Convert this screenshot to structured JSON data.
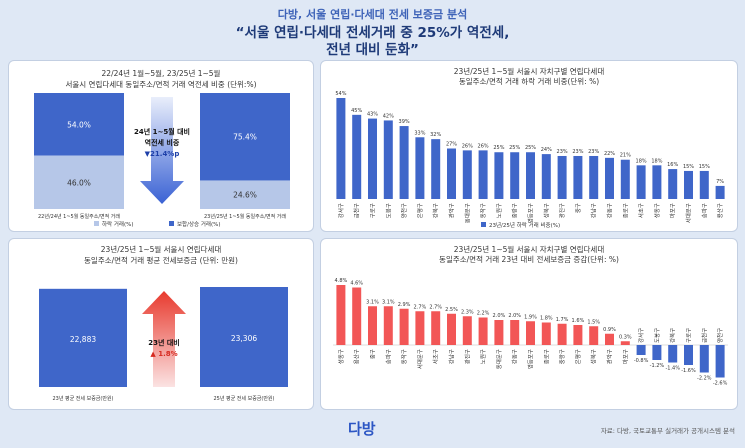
{
  "header": {
    "subtitle": "다방, 서울 연립·다세대 전세 보증금 분석",
    "title_line1": "“서울 연립·다세대 전세거래 중 25%가 역전세,",
    "title_line2": "전년 대비 둔화”"
  },
  "footer": {
    "source": "자료: 다방, 국토교통부 실거래가 공개시스템 분석",
    "logo": "다방"
  },
  "colors": {
    "blue": "#3f66c9",
    "light_blue": "#b6c7e8",
    "red": "#f25656",
    "arrow_blue": "#3a62d4",
    "arrow_red": "#e83a2e"
  },
  "chart_data": [
    {
      "type": "bar",
      "stacked": true,
      "title_line1": "22/24년 1월~5월, 23/25년 1~5월",
      "title_line2": "서울시 연립다세대 동일주소/면적 거래 역전세 비중 (단위:%)",
      "categories": [
        "22년/24년 1~5월 동일주소/면적 거래",
        "23년/25년 1~5월 동일주소/면적 거래"
      ],
      "series": [
        {
          "name": "하락 거래(%)",
          "values": [
            46.0,
            24.6
          ],
          "labels": [
            "46.0%",
            "24.6%"
          ]
        },
        {
          "name": "보합/상승 거래(%)",
          "values": [
            54.0,
            75.4
          ],
          "labels": [
            "54.0%",
            "75.4%"
          ]
        }
      ],
      "annotation": {
        "line1": "24년 1~5월 대비",
        "line2": "역전세 비중",
        "line3": "▼21.4%p"
      }
    },
    {
      "type": "bar",
      "title_line1": "23년/25년 1~5월 서울시 자치구별 연립다세대",
      "title_line2": "동일주소/면적 거래 하락 거래 비중(단위: %)",
      "legend": "23년/25년 하락 거래 비중(%)",
      "categories": [
        "강서구",
        "금천구",
        "구로구",
        "도봉구",
        "양천구",
        "은평구",
        "강북구",
        "관악구",
        "동대문구",
        "동작구",
        "노원구",
        "중랑구",
        "영등포구",
        "성북구",
        "광진구",
        "중구",
        "강남구",
        "강동구",
        "종로구",
        "서초구",
        "성동구",
        "마포구",
        "서대문구",
        "송파구",
        "용산구"
      ],
      "values": [
        54,
        45,
        43,
        42,
        39,
        33,
        32,
        27,
        26,
        26,
        25,
        25,
        25,
        24,
        23,
        23,
        23,
        22,
        21,
        18,
        18,
        16,
        15,
        15,
        7
      ],
      "labels": [
        "54%",
        "45%",
        "43%",
        "42%",
        "39%",
        "33%",
        "32%",
        "27%",
        "26%",
        "26%",
        "25%",
        "25%",
        "25%",
        "24%",
        "23%",
        "23%",
        "23%",
        "22%",
        "21%",
        "18%",
        "18%",
        "16%",
        "15%",
        "15%",
        "7%"
      ]
    },
    {
      "type": "bar",
      "title_line1": "23년/25년 1~5월 서울시 연립다세대",
      "title_line2": "동일주소/면적 거래 평균 전세보증금 (단위: 만원)",
      "categories": [
        "23년 평균 전세 보증금(만원)",
        "25년 평균 전세 보증금(만원)"
      ],
      "values": [
        22883,
        23306
      ],
      "labels": [
        "22,883",
        "23,306"
      ],
      "annotation": {
        "line1": "23년 대비",
        "line2": "▲ 1.8%"
      }
    },
    {
      "type": "bar",
      "title_line1": "23년/25년 1~5월 서울시 자치구별 연립다세대",
      "title_line2": "동일주소/면적 거래 23년 대비 전세보증금 증감(단위: %)",
      "categories": [
        "성동구",
        "용산구",
        "중구",
        "송파구",
        "동작구",
        "서대문구",
        "서초구",
        "강남구",
        "광진구",
        "노원구",
        "동대문구",
        "강동구",
        "영등포구",
        "종로구",
        "중랑구",
        "은평구",
        "성북구",
        "관악구",
        "마포구",
        "강서구",
        "도봉구",
        "강북구",
        "구로구",
        "금천구",
        "양천구"
      ],
      "values": [
        4.8,
        4.6,
        3.1,
        3.1,
        2.9,
        2.7,
        2.7,
        2.5,
        2.3,
        2.2,
        2.0,
        2.0,
        1.9,
        1.8,
        1.7,
        1.6,
        1.5,
        0.9,
        0.3,
        -0.8,
        -1.2,
        -1.4,
        -1.6,
        -2.2,
        -2.6
      ],
      "labels": [
        "4.8%",
        "4.6%",
        "3.1%",
        "3.1%",
        "2.9%",
        "2.7%",
        "2.7%",
        "2.5%",
        "2.3%",
        "2.2%",
        "2.0%",
        "2.0%",
        "1.9%",
        "1.8%",
        "1.7%",
        "1.6%",
        "1.5%",
        "0.9%",
        "0.3%",
        "-0.8%",
        "-1.2%",
        "-1.4%",
        "-1.6%",
        "-2.2%",
        "-2.6%"
      ]
    }
  ]
}
